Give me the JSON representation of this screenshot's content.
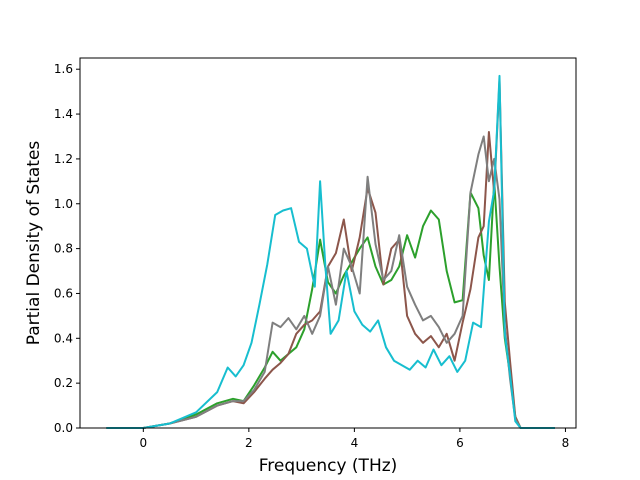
{
  "chart_data": {
    "type": "line",
    "title": "",
    "xlabel": "Frequency (THz)",
    "ylabel": "Partial Density of States",
    "xlim": [
      -1.2,
      8.2
    ],
    "ylim": [
      0.0,
      1.65
    ],
    "xticks": [
      0,
      2,
      4,
      6,
      8
    ],
    "yticks": [
      0.0,
      0.2,
      0.4,
      0.6,
      0.8,
      1.0,
      1.2,
      1.4,
      1.6
    ],
    "xtick_labels": [
      "0",
      "2",
      "4",
      "6",
      "8"
    ],
    "ytick_labels": [
      "0.0",
      "0.2",
      "0.4",
      "0.6",
      "0.8",
      "1.0",
      "1.2",
      "1.4",
      "1.6"
    ],
    "grid": false,
    "legend": "none",
    "series": [
      {
        "color": "#2ca02c",
        "x": [
          -0.7,
          0.0,
          0.5,
          1.0,
          1.4,
          1.7,
          1.9,
          2.1,
          2.3,
          2.45,
          2.6,
          2.75,
          2.9,
          3.05,
          3.2,
          3.35,
          3.5,
          3.65,
          3.8,
          3.95,
          4.1,
          4.25,
          4.4,
          4.55,
          4.7,
          4.85,
          5.0,
          5.15,
          5.3,
          5.45,
          5.6,
          5.75,
          5.9,
          6.05,
          6.2,
          6.35,
          6.45,
          6.55,
          6.65,
          6.75,
          6.85,
          6.95,
          7.05,
          7.15,
          7.8
        ],
        "values": [
          0.0,
          0.0,
          0.02,
          0.06,
          0.11,
          0.13,
          0.12,
          0.19,
          0.27,
          0.34,
          0.3,
          0.33,
          0.36,
          0.44,
          0.62,
          0.84,
          0.65,
          0.6,
          0.68,
          0.74,
          0.8,
          0.85,
          0.72,
          0.64,
          0.66,
          0.72,
          0.86,
          0.76,
          0.9,
          0.97,
          0.93,
          0.7,
          0.56,
          0.57,
          1.05,
          0.98,
          0.77,
          0.66,
          1.1,
          0.72,
          0.4,
          0.24,
          0.05,
          0.0,
          0.0
        ]
      },
      {
        "color": "#8c564b",
        "x": [
          -0.7,
          0.0,
          0.5,
          1.0,
          1.4,
          1.7,
          1.9,
          2.1,
          2.3,
          2.45,
          2.6,
          2.75,
          2.9,
          3.05,
          3.2,
          3.35,
          3.5,
          3.65,
          3.8,
          3.95,
          4.1,
          4.25,
          4.4,
          4.55,
          4.7,
          4.85,
          5.0,
          5.15,
          5.3,
          5.45,
          5.6,
          5.75,
          5.9,
          6.05,
          6.2,
          6.35,
          6.45,
          6.55,
          6.65,
          6.75,
          6.85,
          6.95,
          7.05,
          7.15,
          7.8
        ],
        "values": [
          0.0,
          0.0,
          0.02,
          0.05,
          0.1,
          0.12,
          0.11,
          0.16,
          0.22,
          0.26,
          0.29,
          0.33,
          0.42,
          0.46,
          0.48,
          0.52,
          0.72,
          0.78,
          0.93,
          0.7,
          0.85,
          1.07,
          0.96,
          0.64,
          0.8,
          0.84,
          0.5,
          0.42,
          0.38,
          0.41,
          0.36,
          0.42,
          0.3,
          0.47,
          0.62,
          0.85,
          0.9,
          1.32,
          1.05,
          1.55,
          0.56,
          0.3,
          0.05,
          0.0,
          0.0
        ]
      },
      {
        "color": "#7f7f7f",
        "x": [
          -0.7,
          0.0,
          0.5,
          1.0,
          1.4,
          1.7,
          1.9,
          2.1,
          2.3,
          2.45,
          2.6,
          2.75,
          2.9,
          3.05,
          3.2,
          3.35,
          3.5,
          3.65,
          3.8,
          3.95,
          4.1,
          4.25,
          4.4,
          4.55,
          4.7,
          4.85,
          5.0,
          5.15,
          5.3,
          5.45,
          5.6,
          5.75,
          5.9,
          6.05,
          6.2,
          6.35,
          6.45,
          6.55,
          6.65,
          6.75,
          6.85,
          6.95,
          7.05,
          7.15,
          7.8
        ],
        "values": [
          0.0,
          0.0,
          0.02,
          0.05,
          0.1,
          0.12,
          0.12,
          0.17,
          0.25,
          0.47,
          0.45,
          0.49,
          0.44,
          0.5,
          0.42,
          0.5,
          0.72,
          0.55,
          0.8,
          0.72,
          0.6,
          1.12,
          0.82,
          0.66,
          0.7,
          0.86,
          0.63,
          0.55,
          0.48,
          0.5,
          0.45,
          0.38,
          0.42,
          0.5,
          1.05,
          1.22,
          1.3,
          1.1,
          1.2,
          1.02,
          0.45,
          0.22,
          0.04,
          0.0,
          0.0
        ]
      },
      {
        "color": "#17becf",
        "x": [
          -0.7,
          0.0,
          0.5,
          1.0,
          1.4,
          1.6,
          1.75,
          1.9,
          2.05,
          2.2,
          2.35,
          2.5,
          2.65,
          2.8,
          2.95,
          3.1,
          3.25,
          3.35,
          3.45,
          3.55,
          3.7,
          3.85,
          4.0,
          4.15,
          4.3,
          4.45,
          4.6,
          4.75,
          4.9,
          5.05,
          5.2,
          5.35,
          5.5,
          5.65,
          5.8,
          5.95,
          6.1,
          6.25,
          6.4,
          6.55,
          6.65,
          6.75,
          6.85,
          6.95,
          7.05,
          7.15,
          7.8
        ],
        "values": [
          0.0,
          0.0,
          0.02,
          0.07,
          0.16,
          0.27,
          0.23,
          0.28,
          0.38,
          0.55,
          0.73,
          0.95,
          0.97,
          0.98,
          0.83,
          0.8,
          0.63,
          1.1,
          0.72,
          0.42,
          0.48,
          0.7,
          0.52,
          0.46,
          0.43,
          0.48,
          0.36,
          0.3,
          0.28,
          0.26,
          0.3,
          0.27,
          0.35,
          0.28,
          0.32,
          0.25,
          0.3,
          0.47,
          0.45,
          0.92,
          1.06,
          1.57,
          0.42,
          0.24,
          0.03,
          0.0,
          0.0
        ]
      }
    ]
  }
}
